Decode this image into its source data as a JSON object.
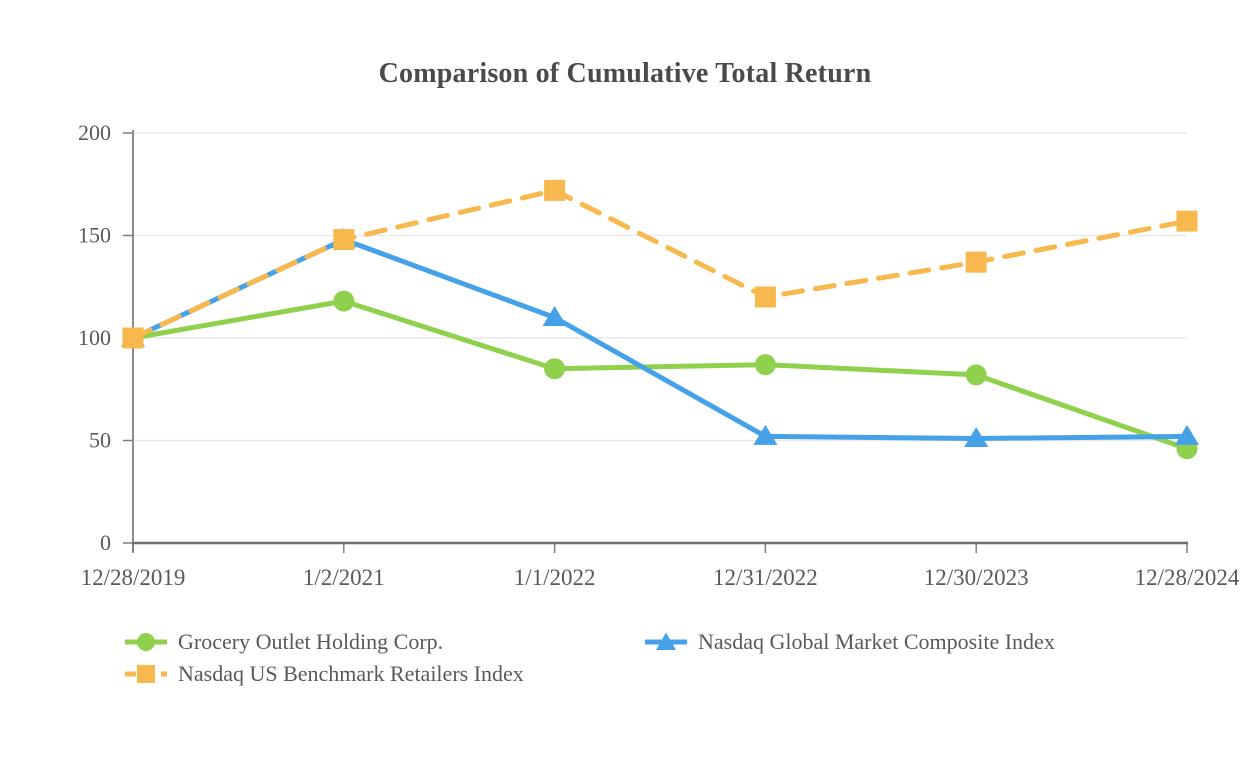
{
  "chart_data": {
    "type": "line",
    "title": "Comparison of Cumulative Total Return",
    "x_labels": [
      "12/28/2019",
      "1/2/2021",
      "1/1/2022",
      "12/31/2022",
      "12/30/2023",
      "12/28/2024"
    ],
    "y_ticks": [
      0,
      50,
      100,
      150,
      200
    ],
    "ylim": [
      0,
      200
    ],
    "grid": true,
    "legend_position": "bottom",
    "series": [
      {
        "name": "Grocery Outlet Holding Corp.",
        "color": "#8FD04C",
        "marker": "circle",
        "line_style": "solid",
        "values": [
          100,
          118,
          85,
          87,
          82,
          46
        ]
      },
      {
        "name": "Nasdaq Global Market Composite Index",
        "color": "#46A2E8",
        "marker": "triangle",
        "line_style": "solid",
        "values": [
          100,
          148,
          110,
          52,
          51,
          52
        ]
      },
      {
        "name": "Nasdaq US Benchmark Retailers Index",
        "color": "#F7B84E",
        "marker": "square",
        "line_style": "dashed",
        "values": [
          100,
          148,
          172,
          120,
          137,
          157
        ]
      }
    ]
  },
  "colors": {
    "title_text": "#4a4a4a",
    "axis_text": "#595959",
    "gridline": "#e9e9e9",
    "axis_line_bottom": "#6f6f6f",
    "axis_line_left": "#8c8c8c",
    "tick_mark": "#7d7d7d",
    "background": "#ffffff"
  }
}
